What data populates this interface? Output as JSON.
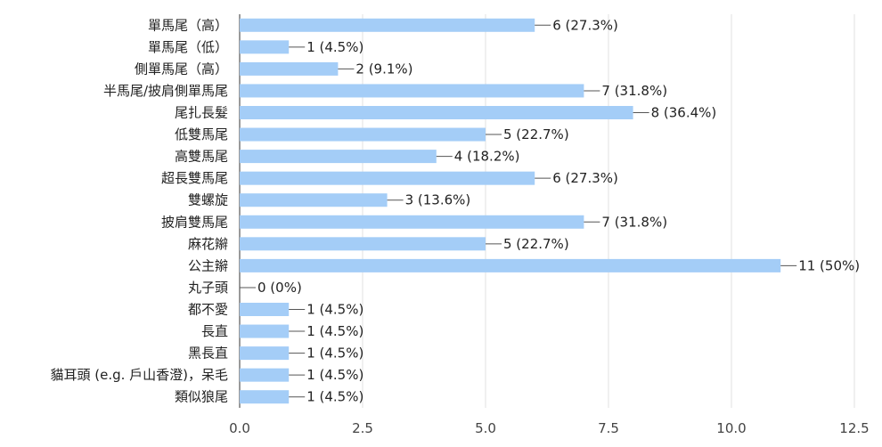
{
  "chart_data": {
    "type": "bar",
    "orientation": "horizontal",
    "bar_color": "#a4cdf7",
    "categories": [
      "單馬尾（高）",
      "單馬尾（低）",
      "側單馬尾（高）",
      "半馬尾/披肩側單馬尾",
      "尾扎長髮",
      "低雙馬尾",
      "高雙馬尾",
      "超長雙馬尾",
      "雙螺旋",
      "披肩雙馬尾",
      "麻花辮",
      "公主辮",
      "丸子頭",
      "都不愛",
      "長直",
      "黑長直",
      "貓耳頭 (e.g. 戶山香澄)，呆毛",
      "類似狼尾"
    ],
    "values": [
      6,
      1,
      2,
      7,
      8,
      5,
      4,
      6,
      3,
      7,
      5,
      11,
      0,
      1,
      1,
      1,
      1,
      1
    ],
    "value_labels": [
      "6 (27.3%)",
      "1 (4.5%)",
      "2 (9.1%)",
      "7 (31.8%)",
      "8 (36.4%)",
      "5 (22.7%)",
      "4 (18.2%)",
      "6 (27.3%)",
      "3 (13.6%)",
      "7 (31.8%)",
      "5 (22.7%)",
      "11 (50%)",
      "0 (0%)",
      "1 (4.5%)",
      "1 (4.5%)",
      "1 (4.5%)",
      "1 (4.5%)",
      "1 (4.5%)"
    ],
    "xlim": [
      0,
      12.5
    ],
    "x_ticks": [
      "0.0",
      "2.5",
      "5.0",
      "7.5",
      "10.0",
      "12.5"
    ],
    "title": "",
    "xlabel": "",
    "ylabel": "",
    "grid": true
  }
}
